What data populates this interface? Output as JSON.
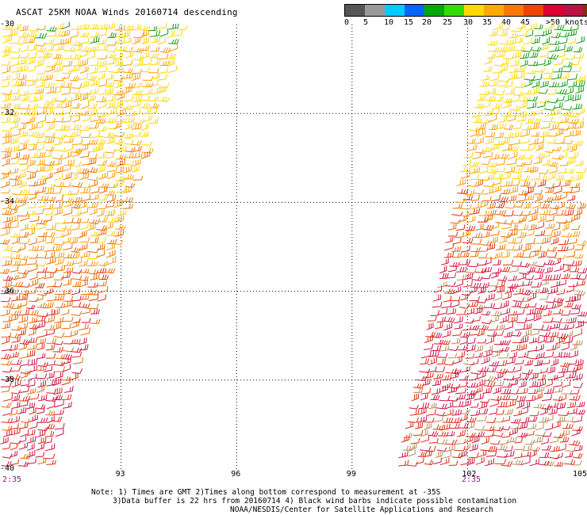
{
  "title": "ASCAT 25KM NOAA Winds 20160714 descending",
  "colorbar": {
    "colors": [
      "#555555",
      "#999999",
      "#00ccff",
      "#0066ff",
      "#00aa00",
      "#33dd00",
      "#ffd800",
      "#ffaa00",
      "#ff7700",
      "#ee4400",
      "#dd0033",
      "#bb1144",
      "#7a3311",
      "#bb7744",
      "#cc33dd",
      "#8800cc",
      "#440088"
    ],
    "labels": [
      "0",
      "5",
      "10",
      "15",
      "20",
      "25",
      "30",
      "35",
      "40",
      "45",
      ">50 knots"
    ]
  },
  "map": {
    "lon_range": [
      90,
      105
    ],
    "lat_range": [
      -40,
      -30
    ],
    "lat_labels": [
      "-30",
      "-32",
      "-34",
      "-36",
      "-38",
      "-40"
    ],
    "lon_labels": [
      "93",
      "96",
      "99",
      "102",
      "105"
    ],
    "time_labels": [
      "2:35",
      "2:35"
    ],
    "barb_colors": {
      "green": "#119911",
      "yellow": "#ffd400",
      "orange": "#ff9900",
      "darkorange": "#e86a00",
      "red": "#dd2a10",
      "crimson": "#cc1040",
      "brown": "#b88a55"
    }
  },
  "notes": [
    "Note: 1) Times are GMT 2)Times along bottom correspond to measurement at -35S",
    "3)Data buffer is 22 hrs from 20160714 4) Black wind barbs indicate possible contamination",
    "NOAA/NESDIS/Center for Satellite Applications and Research"
  ]
}
